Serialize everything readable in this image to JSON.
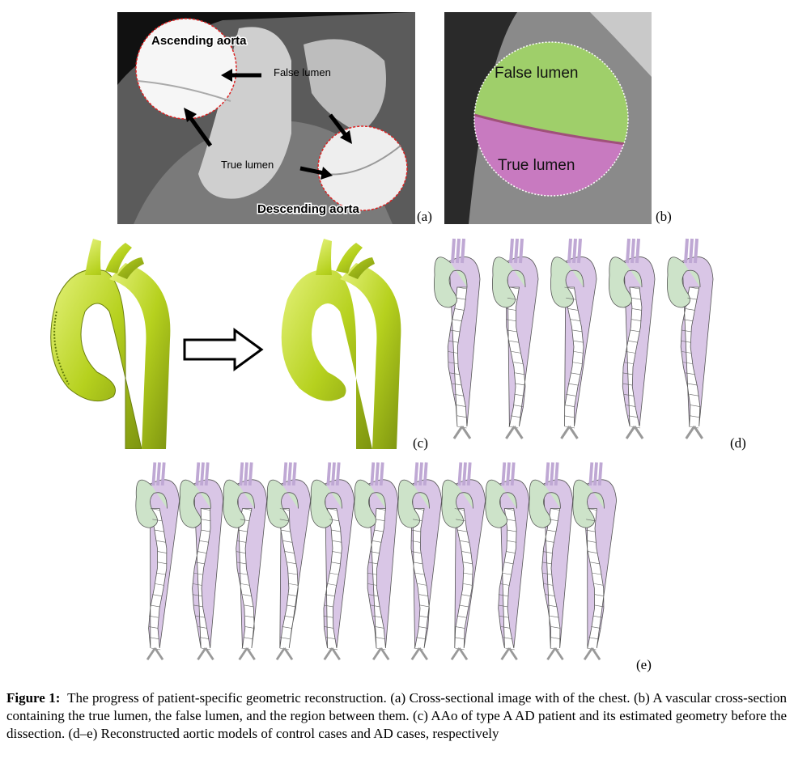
{
  "panels": {
    "a": {
      "letter": "(a)",
      "labels": {
        "ascending": "Ascending aorta",
        "false_lumen": "False lumen",
        "true_lumen": "True lumen",
        "descending": "Descending aorta"
      }
    },
    "b": {
      "letter": "(b)",
      "labels": {
        "false_lumen": "False lumen",
        "true_lumen": "True lumen"
      },
      "colors": {
        "false_lumen": "#9fcf6a",
        "true_lumen": "#c87ac0"
      }
    },
    "c": {
      "letter": "(c)",
      "model_color": "#b6d11e"
    },
    "d": {
      "letter": "(d)",
      "model_count": 5
    },
    "e": {
      "letter": "(e)",
      "model_count": 11
    }
  },
  "caption": {
    "label": "Figure 1:",
    "text": "The progress of patient-specific geometric reconstruction. (a) Cross-sectional image with of the chest. (b) A vascular cross-section containing the true lumen, the false lumen, and the region between them. (c) AAo of type A AD patient and its estimated geometry before the dissection. (d–e) Reconstructed aortic models of control cases and AD cases, respectively"
  }
}
